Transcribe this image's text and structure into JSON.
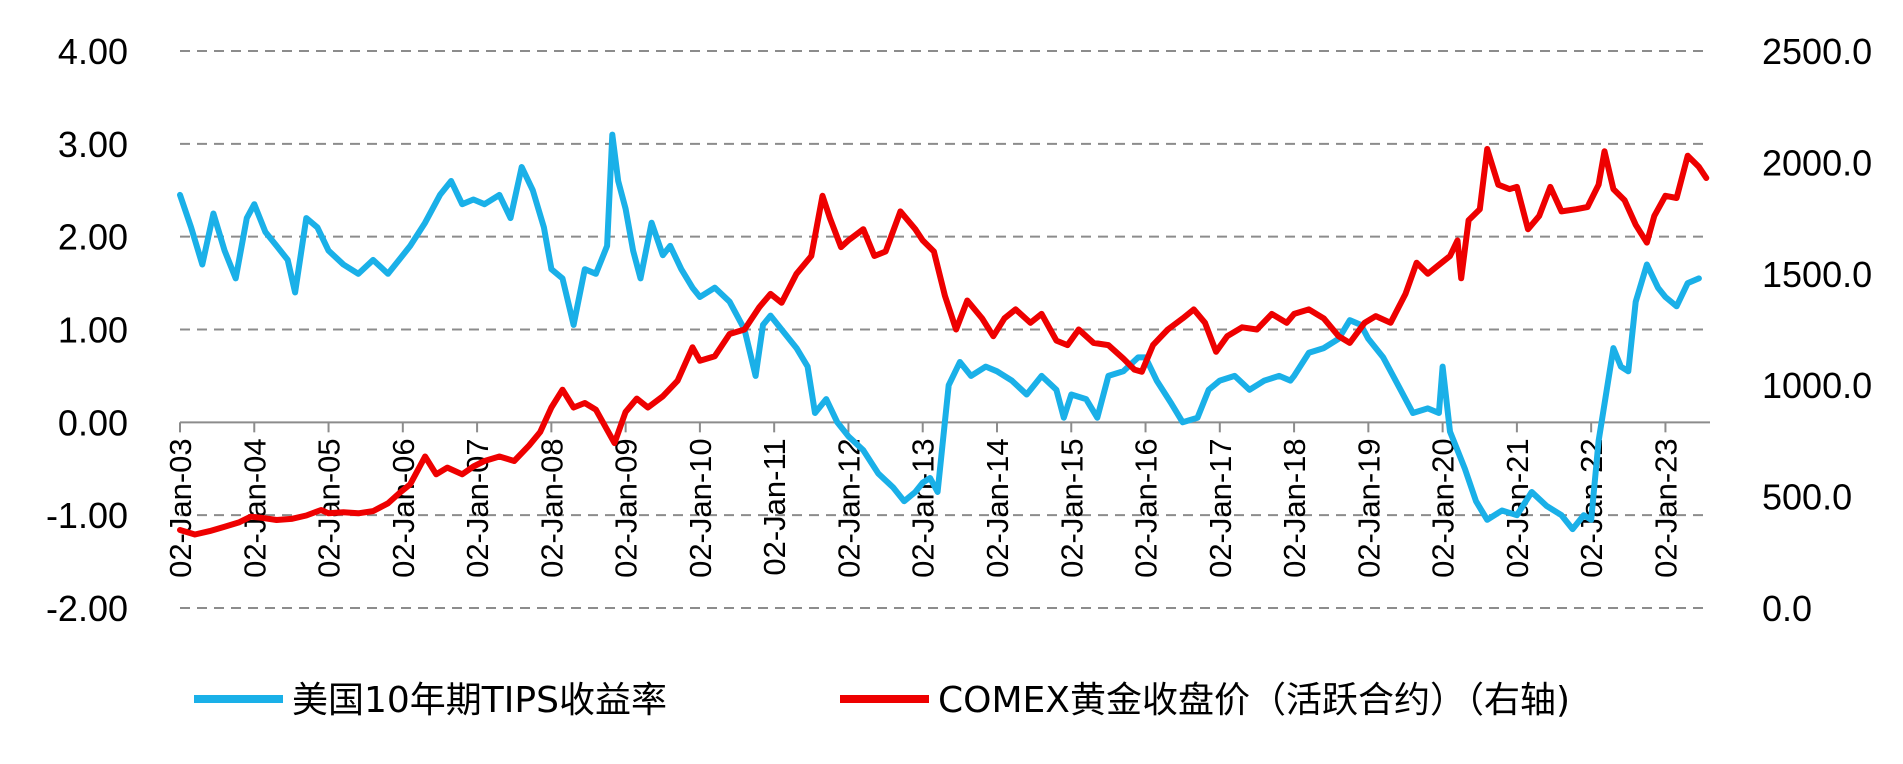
{
  "chart_data": {
    "type": "line",
    "title": "",
    "x_tick_labels": [
      "02-Jan-03",
      "02-Jan-04",
      "02-Jan-05",
      "02-Jan-06",
      "02-Jan-07",
      "02-Jan-08",
      "02-Jan-09",
      "02-Jan-10",
      "02-Jan-11",
      "02-Jan-12",
      "02-Jan-13",
      "02-Jan-14",
      "02-Jan-15",
      "02-Jan-16",
      "02-Jan-17",
      "02-Jan-18",
      "02-Jan-19",
      "02-Jan-20",
      "02-Jan-21",
      "02-Jan-22",
      "02-Jan-23"
    ],
    "y_left": {
      "ylim": [
        -2,
        4
      ],
      "tick_labels": [
        "4.00",
        "3.00",
        "2.00",
        "1.00",
        "0.00",
        "-1.00",
        "-2.00"
      ],
      "tick_values": [
        4,
        3,
        2,
        1,
        0,
        -1,
        -2
      ]
    },
    "y_right": {
      "ylim": [
        0,
        2500
      ],
      "tick_labels": [
        "2500.0",
        "2000.0",
        "1500.0",
        "1000.0",
        "500.0",
        "0.0"
      ],
      "tick_values": [
        2500,
        2000,
        1500,
        1000,
        500,
        0
      ]
    },
    "grid": "horizontal dashed",
    "legend_position": "bottom",
    "series": [
      {
        "name": "美国10年期TIPS收益率",
        "axis": "left",
        "color": "#1AB0E8",
        "points": [
          [
            2003.0,
            2.45
          ],
          [
            2003.15,
            2.1
          ],
          [
            2003.3,
            1.7
          ],
          [
            2003.45,
            2.25
          ],
          [
            2003.6,
            1.85
          ],
          [
            2003.75,
            1.55
          ],
          [
            2003.9,
            2.2
          ],
          [
            2004.0,
            2.35
          ],
          [
            2004.15,
            2.05
          ],
          [
            2004.3,
            1.9
          ],
          [
            2004.45,
            1.75
          ],
          [
            2004.55,
            1.4
          ],
          [
            2004.7,
            2.2
          ],
          [
            2004.85,
            2.1
          ],
          [
            2005.0,
            1.85
          ],
          [
            2005.2,
            1.7
          ],
          [
            2005.4,
            1.6
          ],
          [
            2005.6,
            1.75
          ],
          [
            2005.8,
            1.6
          ],
          [
            2005.95,
            1.75
          ],
          [
            2006.1,
            1.9
          ],
          [
            2006.3,
            2.15
          ],
          [
            2006.5,
            2.45
          ],
          [
            2006.65,
            2.6
          ],
          [
            2006.8,
            2.35
          ],
          [
            2006.95,
            2.4
          ],
          [
            2007.1,
            2.35
          ],
          [
            2007.3,
            2.45
          ],
          [
            2007.45,
            2.2
          ],
          [
            2007.6,
            2.75
          ],
          [
            2007.75,
            2.5
          ],
          [
            2007.9,
            2.1
          ],
          [
            2008.0,
            1.65
          ],
          [
            2008.15,
            1.55
          ],
          [
            2008.3,
            1.05
          ],
          [
            2008.45,
            1.65
          ],
          [
            2008.6,
            1.6
          ],
          [
            2008.75,
            1.9
          ],
          [
            2008.82,
            3.1
          ],
          [
            2008.9,
            2.6
          ],
          [
            2009.0,
            2.3
          ],
          [
            2009.1,
            1.85
          ],
          [
            2009.2,
            1.55
          ],
          [
            2009.35,
            2.15
          ],
          [
            2009.5,
            1.8
          ],
          [
            2009.6,
            1.9
          ],
          [
            2009.75,
            1.65
          ],
          [
            2009.9,
            1.45
          ],
          [
            2010.0,
            1.35
          ],
          [
            2010.2,
            1.45
          ],
          [
            2010.4,
            1.3
          ],
          [
            2010.6,
            1.0
          ],
          [
            2010.75,
            0.5
          ],
          [
            2010.85,
            1.05
          ],
          [
            2010.95,
            1.15
          ],
          [
            2011.1,
            1.0
          ],
          [
            2011.3,
            0.8
          ],
          [
            2011.45,
            0.6
          ],
          [
            2011.55,
            0.1
          ],
          [
            2011.7,
            0.25
          ],
          [
            2011.85,
            0.0
          ],
          [
            2012.0,
            -0.15
          ],
          [
            2012.2,
            -0.3
          ],
          [
            2012.4,
            -0.55
          ],
          [
            2012.6,
            -0.7
          ],
          [
            2012.75,
            -0.85
          ],
          [
            2012.9,
            -0.75
          ],
          [
            2013.0,
            -0.65
          ],
          [
            2013.1,
            -0.6
          ],
          [
            2013.2,
            -0.75
          ],
          [
            2013.35,
            0.4
          ],
          [
            2013.5,
            0.65
          ],
          [
            2013.65,
            0.5
          ],
          [
            2013.85,
            0.6
          ],
          [
            2014.0,
            0.55
          ],
          [
            2014.2,
            0.45
          ],
          [
            2014.4,
            0.3
          ],
          [
            2014.6,
            0.5
          ],
          [
            2014.8,
            0.35
          ],
          [
            2014.9,
            0.05
          ],
          [
            2015.0,
            0.3
          ],
          [
            2015.2,
            0.25
          ],
          [
            2015.35,
            0.05
          ],
          [
            2015.5,
            0.5
          ],
          [
            2015.7,
            0.55
          ],
          [
            2015.9,
            0.7
          ],
          [
            2016.0,
            0.7
          ],
          [
            2016.15,
            0.45
          ],
          [
            2016.35,
            0.2
          ],
          [
            2016.5,
            0.0
          ],
          [
            2016.7,
            0.05
          ],
          [
            2016.85,
            0.35
          ],
          [
            2017.0,
            0.45
          ],
          [
            2017.2,
            0.5
          ],
          [
            2017.4,
            0.35
          ],
          [
            2017.6,
            0.45
          ],
          [
            2017.8,
            0.5
          ],
          [
            2017.95,
            0.45
          ],
          [
            2018.0,
            0.5
          ],
          [
            2018.2,
            0.75
          ],
          [
            2018.4,
            0.8
          ],
          [
            2018.6,
            0.9
          ],
          [
            2018.75,
            1.1
          ],
          [
            2018.9,
            1.05
          ],
          [
            2019.0,
            0.9
          ],
          [
            2019.2,
            0.7
          ],
          [
            2019.4,
            0.4
          ],
          [
            2019.6,
            0.1
          ],
          [
            2019.8,
            0.15
          ],
          [
            2019.95,
            0.1
          ],
          [
            2020.0,
            0.6
          ],
          [
            2020.1,
            -0.1
          ],
          [
            2020.2,
            -0.3
          ],
          [
            2020.3,
            -0.5
          ],
          [
            2020.45,
            -0.85
          ],
          [
            2020.6,
            -1.05
          ],
          [
            2020.8,
            -0.95
          ],
          [
            2021.0,
            -1.0
          ],
          [
            2021.2,
            -0.75
          ],
          [
            2021.4,
            -0.9
          ],
          [
            2021.6,
            -1.0
          ],
          [
            2021.75,
            -1.15
          ],
          [
            2021.9,
            -1.0
          ],
          [
            2022.0,
            -1.05
          ],
          [
            2022.1,
            -0.2
          ],
          [
            2022.2,
            0.3
          ],
          [
            2022.3,
            0.8
          ],
          [
            2022.4,
            0.6
          ],
          [
            2022.5,
            0.55
          ],
          [
            2022.6,
            1.3
          ],
          [
            2022.75,
            1.7
          ],
          [
            2022.9,
            1.45
          ],
          [
            2023.0,
            1.35
          ],
          [
            2023.15,
            1.25
          ],
          [
            2023.3,
            1.5
          ],
          [
            2023.45,
            1.55
          ]
        ]
      },
      {
        "name": "COMEX黄金收盘价（活跃合约）（右轴)",
        "axis": "right",
        "color": "#EE0000",
        "points": [
          [
            2003.0,
            350
          ],
          [
            2003.2,
            330
          ],
          [
            2003.4,
            345
          ],
          [
            2003.6,
            365
          ],
          [
            2003.8,
            385
          ],
          [
            2003.95,
            410
          ],
          [
            2004.1,
            405
          ],
          [
            2004.3,
            395
          ],
          [
            2004.5,
            400
          ],
          [
            2004.7,
            415
          ],
          [
            2004.9,
            440
          ],
          [
            2005.0,
            425
          ],
          [
            2005.2,
            430
          ],
          [
            2005.4,
            425
          ],
          [
            2005.6,
            435
          ],
          [
            2005.8,
            470
          ],
          [
            2005.95,
            515
          ],
          [
            2006.1,
            555
          ],
          [
            2006.3,
            680
          ],
          [
            2006.45,
            600
          ],
          [
            2006.6,
            630
          ],
          [
            2006.8,
            600
          ],
          [
            2006.95,
            635
          ],
          [
            2007.1,
            660
          ],
          [
            2007.3,
            680
          ],
          [
            2007.5,
            660
          ],
          [
            2007.7,
            730
          ],
          [
            2007.85,
            790
          ],
          [
            2008.0,
            900
          ],
          [
            2008.15,
            980
          ],
          [
            2008.3,
            900
          ],
          [
            2008.45,
            920
          ],
          [
            2008.6,
            890
          ],
          [
            2008.75,
            800
          ],
          [
            2008.85,
            740
          ],
          [
            2009.0,
            880
          ],
          [
            2009.15,
            940
          ],
          [
            2009.3,
            900
          ],
          [
            2009.5,
            950
          ],
          [
            2009.7,
            1020
          ],
          [
            2009.9,
            1170
          ],
          [
            2010.0,
            1110
          ],
          [
            2010.2,
            1130
          ],
          [
            2010.4,
            1230
          ],
          [
            2010.6,
            1250
          ],
          [
            2010.8,
            1350
          ],
          [
            2010.95,
            1410
          ],
          [
            2011.1,
            1370
          ],
          [
            2011.3,
            1500
          ],
          [
            2011.5,
            1580
          ],
          [
            2011.65,
            1850
          ],
          [
            2011.75,
            1750
          ],
          [
            2011.9,
            1620
          ],
          [
            2012.0,
            1650
          ],
          [
            2012.2,
            1700
          ],
          [
            2012.35,
            1580
          ],
          [
            2012.5,
            1600
          ],
          [
            2012.7,
            1780
          ],
          [
            2012.9,
            1700
          ],
          [
            2013.0,
            1650
          ],
          [
            2013.15,
            1600
          ],
          [
            2013.3,
            1400
          ],
          [
            2013.45,
            1250
          ],
          [
            2013.6,
            1380
          ],
          [
            2013.8,
            1300
          ],
          [
            2013.95,
            1220
          ],
          [
            2014.1,
            1300
          ],
          [
            2014.25,
            1340
          ],
          [
            2014.45,
            1280
          ],
          [
            2014.6,
            1320
          ],
          [
            2014.8,
            1200
          ],
          [
            2014.95,
            1180
          ],
          [
            2015.1,
            1250
          ],
          [
            2015.3,
            1190
          ],
          [
            2015.5,
            1180
          ],
          [
            2015.7,
            1120
          ],
          [
            2015.85,
            1070
          ],
          [
            2015.95,
            1060
          ],
          [
            2016.1,
            1180
          ],
          [
            2016.3,
            1250
          ],
          [
            2016.5,
            1300
          ],
          [
            2016.65,
            1340
          ],
          [
            2016.8,
            1280
          ],
          [
            2016.95,
            1150
          ],
          [
            2017.1,
            1220
          ],
          [
            2017.3,
            1260
          ],
          [
            2017.5,
            1250
          ],
          [
            2017.7,
            1320
          ],
          [
            2017.9,
            1280
          ],
          [
            2018.0,
            1320
          ],
          [
            2018.2,
            1340
          ],
          [
            2018.4,
            1300
          ],
          [
            2018.6,
            1220
          ],
          [
            2018.75,
            1190
          ],
          [
            2018.95,
            1280
          ],
          [
            2019.1,
            1310
          ],
          [
            2019.3,
            1280
          ],
          [
            2019.5,
            1410
          ],
          [
            2019.65,
            1550
          ],
          [
            2019.8,
            1500
          ],
          [
            2019.95,
            1540
          ],
          [
            2020.1,
            1580
          ],
          [
            2020.2,
            1650
          ],
          [
            2020.25,
            1480
          ],
          [
            2020.35,
            1740
          ],
          [
            2020.5,
            1790
          ],
          [
            2020.6,
            2060
          ],
          [
            2020.75,
            1900
          ],
          [
            2020.9,
            1880
          ],
          [
            2021.0,
            1890
          ],
          [
            2021.15,
            1700
          ],
          [
            2021.3,
            1760
          ],
          [
            2021.45,
            1890
          ],
          [
            2021.6,
            1780
          ],
          [
            2021.8,
            1790
          ],
          [
            2021.95,
            1800
          ],
          [
            2022.1,
            1900
          ],
          [
            2022.18,
            2050
          ],
          [
            2022.3,
            1880
          ],
          [
            2022.45,
            1830
          ],
          [
            2022.6,
            1720
          ],
          [
            2022.75,
            1640
          ],
          [
            2022.85,
            1760
          ],
          [
            2023.0,
            1850
          ],
          [
            2023.15,
            1840
          ],
          [
            2023.3,
            2030
          ],
          [
            2023.45,
            1980
          ],
          [
            2023.55,
            1930
          ]
        ]
      }
    ]
  },
  "legend": {
    "items": [
      {
        "label": "美国10年期TIPS收益率",
        "color": "#1AB0E8"
      },
      {
        "label": "COMEX黄金收盘价（活跃合约）（右轴)",
        "color": "#EE0000"
      }
    ]
  }
}
